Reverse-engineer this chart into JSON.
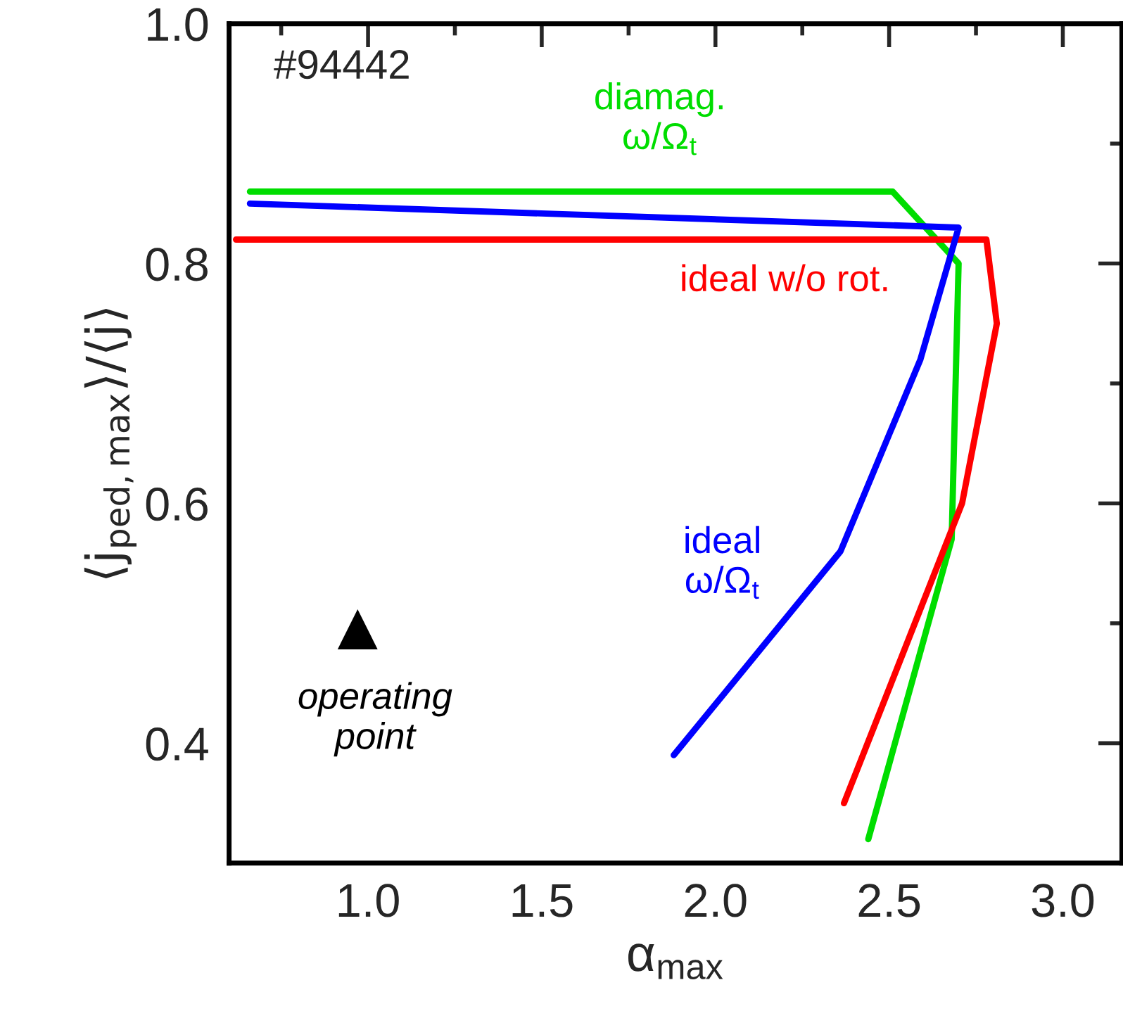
{
  "chart_data": {
    "type": "line",
    "xlabel": "α$_{max}$",
    "ylabel": "⟨j$_{ped,max}$⟩/⟨j⟩",
    "annotations": [
      "#94442"
    ],
    "xlim": [
      0.6,
      3.17
    ],
    "ylim": [
      0.3,
      1.0
    ],
    "xticks": [
      {
        "value": 1,
        "label": "1.0"
      },
      {
        "value": 1.5,
        "label": "1.5"
      },
      {
        "value": 2,
        "label": "2.0"
      },
      {
        "value": 2.5,
        "label": "2.5"
      },
      {
        "value": 3,
        "label": "3.0"
      }
    ],
    "yticks": [
      {
        "value": 0.4,
        "label": "0.4"
      },
      {
        "value": 0.6,
        "label": "0.6"
      },
      {
        "value": 0.8,
        "label": "0.8"
      },
      {
        "value": 1,
        "label": "1.0"
      }
    ],
    "grid": false,
    "legend": false,
    "series": [
      {
        "name": "diamag.\nω/Ω$_{t}$",
        "color": "#00dd00",
        "x": [
          0.66,
          2.51,
          2.7,
          2.68,
          2.44
        ],
        "values": [
          0.86,
          0.86,
          0.8,
          0.57,
          0.32
        ]
      },
      {
        "name": "ideal w/o rot.",
        "color": "#ff0000",
        "x": [
          0.62,
          2.78,
          2.81,
          2.71,
          2.37
        ],
        "values": [
          0.82,
          0.82,
          0.75,
          0.6,
          0.35
        ]
      },
      {
        "name": "ideal\nω/Ω$_{t}$",
        "color": "#0000ff",
        "x": [
          0.66,
          2.7,
          2.59,
          2.36,
          1.88
        ],
        "values": [
          0.85,
          0.83,
          0.72,
          0.56,
          0.39
        ]
      },
      {
        "name": "operating\npoint",
        "type": "scatter",
        "marker": "triangle",
        "color": "#000000",
        "x": [
          0.97
        ],
        "values": [
          0.495
        ]
      }
    ]
  }
}
